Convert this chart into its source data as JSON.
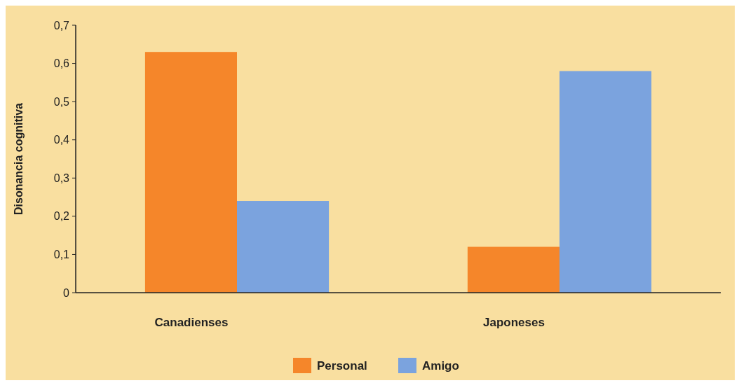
{
  "chart_data": {
    "type": "bar",
    "ylabel": "Disonancia cognitiva",
    "categories": [
      "Canadienses",
      "Japoneses"
    ],
    "series": [
      {
        "name": "Personal",
        "color": "#f5862a",
        "values": [
          0.63,
          0.12
        ]
      },
      {
        "name": "Amigo",
        "color": "#7ba3de",
        "values": [
          0.24,
          0.58
        ]
      }
    ],
    "ylim": [
      0,
      0.7
    ],
    "yticks": [
      {
        "value": 0,
        "label": "0"
      },
      {
        "value": 0.1,
        "label": "0,1"
      },
      {
        "value": 0.2,
        "label": "0,2"
      },
      {
        "value": 0.3,
        "label": "0,3"
      },
      {
        "value": 0.4,
        "label": "0,4"
      },
      {
        "value": 0.5,
        "label": "0,5"
      },
      {
        "value": 0.6,
        "label": "0,6"
      },
      {
        "value": 0.7,
        "label": "0,7"
      }
    ],
    "grid": false,
    "legend": "bottom"
  }
}
